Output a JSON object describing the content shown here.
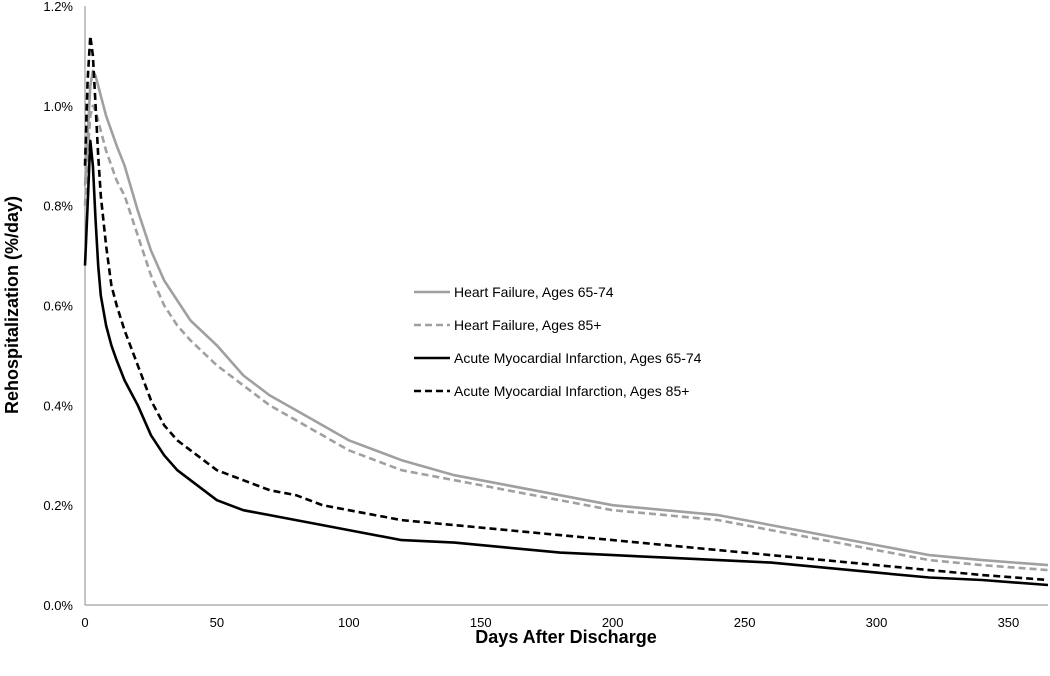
{
  "chart_data": {
    "type": "line",
    "title": "",
    "xlabel": "Days After Discharge",
    "ylabel": "Rehospitalization (%/day)",
    "xlim": [
      0,
      365
    ],
    "ylim": [
      0,
      1.2
    ],
    "x_ticks": [
      "0",
      "50",
      "100",
      "150",
      "200",
      "250",
      "300",
      "350"
    ],
    "y_ticks": [
      "0.0%",
      "0.2%",
      "0.4%",
      "0.6%",
      "0.8%",
      "1.0%",
      "1.2%"
    ],
    "grid": false,
    "legend_position": "center",
    "series": [
      {
        "name": "Heart Failure, Ages 65-74",
        "color": "#a0a0a0",
        "dash": "solid",
        "x": [
          0,
          1,
          2,
          3,
          4,
          6,
          8,
          10,
          12,
          15,
          20,
          25,
          30,
          35,
          40,
          50,
          60,
          70,
          80,
          90,
          100,
          120,
          140,
          160,
          180,
          200,
          220,
          240,
          260,
          280,
          300,
          320,
          340,
          365
        ],
        "y": [
          0.84,
          0.94,
          1.04,
          1.07,
          1.06,
          1.02,
          0.98,
          0.95,
          0.92,
          0.88,
          0.79,
          0.71,
          0.65,
          0.61,
          0.57,
          0.52,
          0.46,
          0.42,
          0.39,
          0.36,
          0.33,
          0.29,
          0.26,
          0.24,
          0.22,
          0.2,
          0.19,
          0.18,
          0.16,
          0.14,
          0.12,
          0.1,
          0.09,
          0.08
        ]
      },
      {
        "name": "Heart Failure, Ages 85+",
        "color": "#a0a0a0",
        "dash": "dashed",
        "x": [
          0,
          1,
          2,
          3,
          4,
          6,
          8,
          10,
          12,
          15,
          20,
          25,
          30,
          35,
          40,
          50,
          60,
          70,
          80,
          90,
          100,
          120,
          140,
          160,
          180,
          200,
          220,
          240,
          260,
          280,
          300,
          320,
          340,
          365
        ],
        "y": [
          0.8,
          0.9,
          0.98,
          1.0,
          0.99,
          0.95,
          0.91,
          0.88,
          0.85,
          0.82,
          0.74,
          0.66,
          0.6,
          0.56,
          0.53,
          0.48,
          0.44,
          0.4,
          0.37,
          0.34,
          0.31,
          0.27,
          0.25,
          0.23,
          0.21,
          0.19,
          0.18,
          0.17,
          0.15,
          0.13,
          0.11,
          0.09,
          0.08,
          0.07
        ]
      },
      {
        "name": "Acute Myocardial Infarction, Ages 65-74",
        "color": "#000000",
        "dash": "solid",
        "x": [
          0,
          1,
          2,
          3,
          4,
          5,
          6,
          8,
          10,
          12,
          15,
          20,
          25,
          30,
          35,
          40,
          50,
          60,
          70,
          80,
          90,
          100,
          120,
          140,
          160,
          180,
          200,
          220,
          240,
          260,
          280,
          300,
          320,
          340,
          365
        ],
        "y": [
          0.68,
          0.8,
          0.93,
          0.88,
          0.77,
          0.68,
          0.62,
          0.56,
          0.52,
          0.49,
          0.45,
          0.4,
          0.34,
          0.3,
          0.27,
          0.25,
          0.21,
          0.19,
          0.18,
          0.17,
          0.16,
          0.15,
          0.13,
          0.125,
          0.115,
          0.105,
          0.1,
          0.095,
          0.09,
          0.085,
          0.075,
          0.065,
          0.055,
          0.05,
          0.04
        ]
      },
      {
        "name": "Acute Myocardial Infarction, Ages 85+",
        "color": "#000000",
        "dash": "dashed",
        "x": [
          0,
          1,
          2,
          3,
          4,
          5,
          6,
          8,
          10,
          12,
          15,
          20,
          25,
          30,
          35,
          40,
          50,
          60,
          70,
          80,
          90,
          100,
          120,
          140,
          160,
          180,
          200,
          220,
          240,
          260,
          280,
          300,
          320,
          340,
          365
        ],
        "y": [
          0.88,
          1.05,
          1.14,
          1.1,
          1.0,
          0.9,
          0.82,
          0.72,
          0.64,
          0.6,
          0.55,
          0.48,
          0.41,
          0.36,
          0.33,
          0.31,
          0.27,
          0.25,
          0.23,
          0.22,
          0.2,
          0.19,
          0.17,
          0.16,
          0.15,
          0.14,
          0.13,
          0.12,
          0.11,
          0.1,
          0.09,
          0.08,
          0.07,
          0.06,
          0.05
        ]
      }
    ]
  }
}
